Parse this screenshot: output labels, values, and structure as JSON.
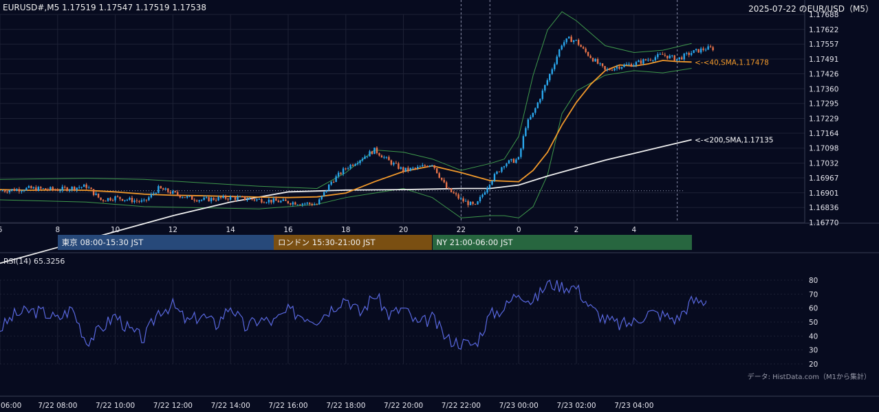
{
  "header": {
    "symbol_ohlc": "EURUSD#,M5 1.17519 1.17547 1.17519 1.17538",
    "right_title": "2025-07-22 のEUR/USD（M5）"
  },
  "sessions": [
    {
      "label": "東京 08:00-15:30 JST",
      "color": "#27497a"
    },
    {
      "label": "ロンドン 15:30-21:00 JST",
      "color": "#7a4f12"
    },
    {
      "label": "NY 21:00-06:00 JST",
      "color": "#27663f"
    }
  ],
  "rsi_label": "RSI(14) 65.3256",
  "credit": "データ: HistData.com（M1から集計）",
  "colors": {
    "background": "#070b1f",
    "grid": "#1e2236",
    "bull": "#2aa8ee",
    "bear": "#e8734a",
    "sma40": "#f39a2b",
    "sma200": "#f0f0f0",
    "bollinger": "#3f9a4c",
    "rsi": "#5968e0"
  },
  "chart_data": {
    "type": "line",
    "price_axis": {
      "ticks": [
        "1.17688",
        "1.17622",
        "1.17557",
        "1.17491",
        "1.17426",
        "1.17360",
        "1.17295",
        "1.17229",
        "1.17164",
        "1.17098",
        "1.17032",
        "1.16967",
        "1.16901",
        "1.16836",
        "1.16770"
      ],
      "ylim": [
        1.1677,
        1.17688
      ]
    },
    "time_axis": {
      "hour_ticks": [
        "6",
        "8",
        "10",
        "12",
        "14",
        "16",
        "18",
        "20",
        "22",
        "0",
        "2",
        "4"
      ],
      "date_ticks": [
        "06:00",
        "7/22 08:00",
        "7/22 10:00",
        "7/22 12:00",
        "7/22 14:00",
        "7/22 16:00",
        "7/22 18:00",
        "7/22 20:00",
        "7/22 22:00",
        "7/23 00:00",
        "7/23 02:00",
        "7/23 04:00"
      ],
      "xlim_hours": [
        6,
        30.8
      ]
    },
    "series": [
      {
        "name": "SMA(40)",
        "label": "<-<40,SMA,1.17478",
        "x": [
          6,
          7,
          8,
          9,
          10,
          11,
          12,
          13,
          14,
          15,
          16,
          17,
          18,
          19,
          20,
          21,
          22,
          23,
          24,
          24.5,
          25,
          25.5,
          26,
          26.5,
          27,
          27.5,
          28,
          28.5,
          29,
          29.5,
          30
        ],
        "values": [
          1.16915,
          1.16912,
          1.16914,
          1.16912,
          1.16905,
          1.16895,
          1.1689,
          1.16888,
          1.16885,
          1.16882,
          1.1688,
          1.16883,
          1.169,
          1.1695,
          1.16995,
          1.1702,
          1.1699,
          1.16955,
          1.1695,
          1.17,
          1.1708,
          1.172,
          1.173,
          1.1738,
          1.1744,
          1.17465,
          1.1746,
          1.1747,
          1.17485,
          1.1748,
          1.17478
        ]
      },
      {
        "name": "SMA(200)",
        "label": "<-<200,SMA,1.17135",
        "x": [
          6,
          8,
          10,
          12,
          14,
          16,
          18,
          20,
          22,
          23,
          24,
          25,
          26,
          27,
          28,
          29,
          30
        ],
        "values": [
          1.1659,
          1.1666,
          1.1673,
          1.168,
          1.1686,
          1.16905,
          1.16913,
          1.16915,
          1.1692,
          1.1692,
          1.16935,
          1.16975,
          1.1701,
          1.17045,
          1.17075,
          1.17105,
          1.17135
        ]
      },
      {
        "name": "BB upper",
        "x": [
          6,
          9,
          11,
          13,
          15,
          17,
          18,
          19,
          20,
          21,
          22,
          23,
          23.5,
          24,
          24.5,
          25,
          25.5,
          26,
          27,
          28,
          29,
          30
        ],
        "values": [
          1.1696,
          1.16965,
          1.1696,
          1.16945,
          1.1693,
          1.1692,
          1.1699,
          1.1709,
          1.1708,
          1.1705,
          1.17,
          1.1703,
          1.1705,
          1.1715,
          1.1742,
          1.1762,
          1.177,
          1.1766,
          1.1755,
          1.1752,
          1.1753,
          1.1756
        ]
      },
      {
        "name": "BB lower",
        "x": [
          6,
          9,
          11,
          13,
          15,
          17,
          18,
          19,
          20,
          21,
          22,
          23,
          23.5,
          24,
          24.5,
          25,
          25.5,
          26,
          27,
          28,
          29,
          30
        ],
        "values": [
          1.1687,
          1.1686,
          1.1684,
          1.16835,
          1.1683,
          1.1685,
          1.1688,
          1.169,
          1.1692,
          1.1688,
          1.1679,
          1.168,
          1.168,
          1.1679,
          1.1684,
          1.1698,
          1.1725,
          1.1735,
          1.1742,
          1.1744,
          1.1743,
          1.1745
        ]
      },
      {
        "name": "Close",
        "x": [
          6,
          7,
          8,
          9,
          9.5,
          10,
          11,
          11.5,
          12,
          12.5,
          13,
          14,
          15,
          16,
          17,
          17.5,
          18,
          18.5,
          19,
          19.5,
          20,
          20.5,
          21,
          21.5,
          22,
          22.5,
          23,
          23.5,
          24,
          24.25,
          24.5,
          25,
          25.25,
          25.5,
          25.75,
          26,
          26.25,
          26.5,
          27,
          27.5,
          28,
          28.5,
          29,
          29.5,
          30,
          30.5
        ],
        "values": [
          1.1691,
          1.1692,
          1.16915,
          1.1693,
          1.1687,
          1.1688,
          1.1686,
          1.1692,
          1.169,
          1.1688,
          1.1687,
          1.1688,
          1.1687,
          1.1686,
          1.1685,
          1.1695,
          1.1701,
          1.1705,
          1.1709,
          1.1704,
          1.17,
          1.1701,
          1.1703,
          1.1692,
          1.1687,
          1.1684,
          1.1695,
          1.1703,
          1.1705,
          1.172,
          1.1725,
          1.174,
          1.1748,
          1.1756,
          1.1758,
          1.1757,
          1.1753,
          1.175,
          1.1744,
          1.1746,
          1.1747,
          1.1749,
          1.1751,
          1.1749,
          1.1752,
          1.17538
        ]
      }
    ],
    "rsi": {
      "name": "RSI(14)",
      "value": 65.3256,
      "ticks": [
        80,
        70,
        60,
        50,
        40,
        30,
        20
      ],
      "ylim": [
        20,
        80
      ],
      "x": [
        6,
        6.5,
        7,
        7.5,
        8,
        8.5,
        9,
        9.5,
        10,
        10.5,
        11,
        11.5,
        12,
        12.5,
        13,
        13.5,
        14,
        14.5,
        15,
        15.5,
        16,
        16.5,
        17,
        17.5,
        18,
        18.5,
        19,
        19.5,
        20,
        20.5,
        21,
        21.5,
        22,
        22.5,
        23,
        23.5,
        24,
        24.5,
        25,
        25.5,
        26,
        26.5,
        27,
        27.5,
        28,
        28.5,
        29,
        29.5,
        30
      ],
      "values": [
        45,
        55,
        58,
        57,
        52,
        60,
        36,
        45,
        55,
        44,
        38,
        58,
        62,
        50,
        55,
        48,
        62,
        46,
        52,
        50,
        58,
        55,
        52,
        60,
        68,
        56,
        70,
        55,
        60,
        48,
        53,
        38,
        35,
        34,
        55,
        60,
        72,
        64,
        78,
        76,
        75,
        60,
        52,
        48,
        50,
        57,
        55,
        52,
        65
      ]
    }
  }
}
